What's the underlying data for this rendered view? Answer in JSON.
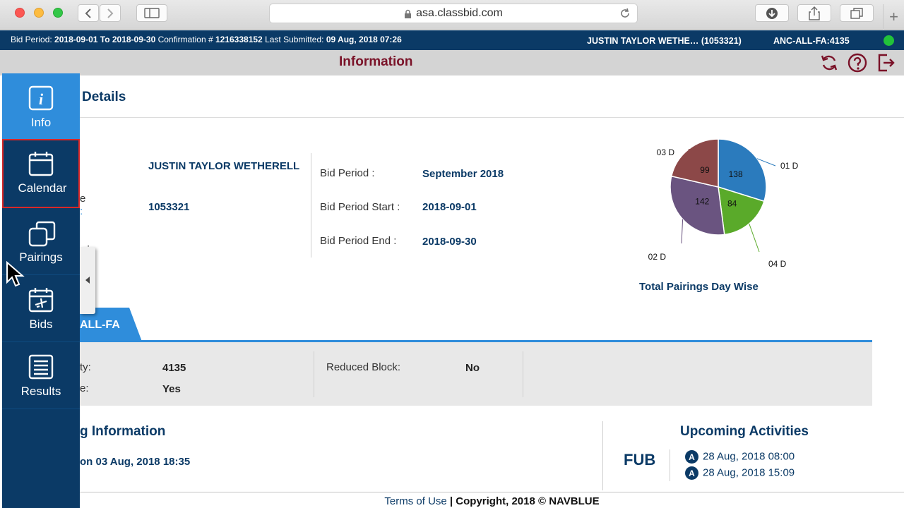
{
  "browser": {
    "url": "asa.classbid.com"
  },
  "topbar": {
    "bid_period_label": "Bid Period:",
    "bid_period_value": "2018-09-01 To 2018-09-30",
    "confirmation_label": "Confirmation #",
    "confirmation_value": "1216338152",
    "last_submitted_label": "Last Submitted:",
    "last_submitted_value": "09 Aug, 2018 07:26",
    "user_name": "JUSTIN TAYLOR WETHE…  (1053321)",
    "base": "ANC-ALL-FA:4135",
    "status_color": "#22c23a"
  },
  "header": {
    "title": "Information",
    "icons": [
      "refresh-icon",
      "help-icon",
      "logout-icon"
    ]
  },
  "sidebar": {
    "items": [
      {
        "label": "Info",
        "icon": "info-icon"
      },
      {
        "label": "Calendar",
        "icon": "calendar-icon"
      },
      {
        "label": "Pairings",
        "icon": "pairings-icon"
      },
      {
        "label": "Bids",
        "icon": "bids-icon"
      },
      {
        "label": "Results",
        "icon": "results-icon"
      }
    ]
  },
  "details": {
    "title": "Details",
    "name": "JUSTIN TAYLOR WETHERELL",
    "employee_id": "1053321",
    "partial_label_1": "e",
    "partial_label_2": ":",
    "partial_label_3": ":",
    "bid_period_label": "Bid Period :",
    "bid_period_value": "September 2018",
    "bid_period_start_label": "Bid Period Start :",
    "bid_period_start_value": "2018-09-01",
    "bid_period_end_label": "Bid Period End :",
    "bid_period_end_value": "2018-09-30"
  },
  "chart_data": {
    "type": "pie",
    "title": "Total Pairings Day Wise",
    "slices": [
      {
        "label": "01 D",
        "value": 138,
        "color": "#2b7bbd"
      },
      {
        "label": "04 D",
        "value": 84,
        "color": "#5aaa2a"
      },
      {
        "label": "02 D",
        "value": 142,
        "color": "#6a5480"
      },
      {
        "label": "03 D",
        "value": 99,
        "color": "#8c4848"
      }
    ]
  },
  "tab": {
    "label": "ALL-FA"
  },
  "tabinfo": {
    "row1_label": "ty:",
    "row1_value": "4135",
    "row2_label": "e:",
    "row2_value": "Yes",
    "reduced_block_label": "Reduced Block:",
    "reduced_block_value": "No"
  },
  "bidding_info": {
    "title": "g Information",
    "text": "on 03 Aug, 2018 18:35"
  },
  "upcoming": {
    "title": "Upcoming Activities",
    "code": "FUB",
    "badge": "A",
    "items": [
      "28 Aug, 2018 08:00",
      "28 Aug, 2018 15:09"
    ]
  },
  "footer": {
    "terms": "Terms of Use",
    "copyright": "| Copyright, 2018 © NAVBLUE"
  }
}
